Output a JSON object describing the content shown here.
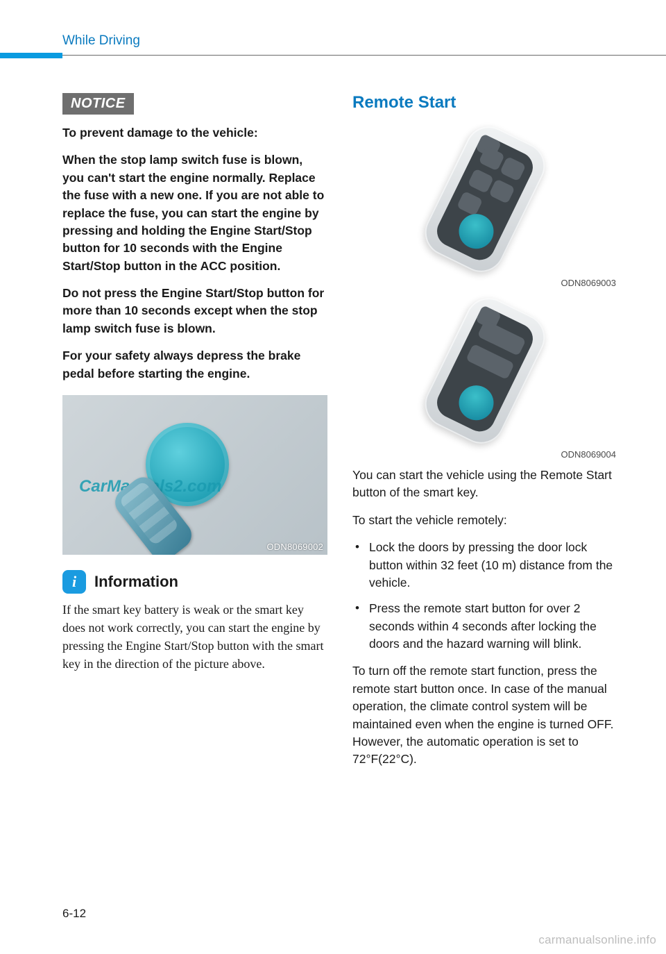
{
  "header": {
    "section": "While Driving"
  },
  "left": {
    "notice_label": "NOTICE",
    "p1": "To prevent damage to the vehicle:",
    "p2": "When the stop lamp switch fuse is blown, you can't start the engine normally. Replace the fuse with a new one. If you are not able to replace the fuse, you can start the engine by pressing and holding the Engine Start/Stop button for 10 seconds with the Engine Start/Stop button in the ACC position.",
    "p3": "Do not press the Engine Start/Stop button for more than 10 seconds except when the stop lamp switch fuse is blown.",
    "p4": "For your safety always depress the brake pedal before starting the engine.",
    "fig1_watermark": "CarManuals2.com",
    "fig1_id": "ODN8069002",
    "info_icon": "i",
    "info_title": "Information",
    "info_text": "If the smart key battery is weak or the smart key does not work correctly, you can start the engine by pressing the Engine Start/Stop button with the smart key in the direction of the picture above."
  },
  "right": {
    "title": "Remote Start",
    "fig2_id": "ODN8069003",
    "fig3_id": "ODN8069004",
    "p1": "You can start the vehicle using the Remote Start button of the smart key.",
    "p2": "To start the vehicle remotely:",
    "bullets": [
      "Lock the doors by pressing the door lock button within 32 feet (10 m) distance from the vehicle.",
      "Press the remote start button for over 2 seconds within 4 seconds after locking the doors and the hazard warning will blink."
    ],
    "p3": "To turn off the remote start function, press the remote start button once. In case of the manual operation, the climate control system will be maintained even when the engine is turned OFF. However, the automatic operation is set to 72°F(22°C)."
  },
  "footer": {
    "page_num": "6-12",
    "watermark": "carmanualsonline.info"
  },
  "colors": {
    "accent": "#0a7abf",
    "accent_light": "#0a9be0",
    "notice_bg": "#6f6f6f",
    "info_bg": "#1a9be0",
    "text": "#1a1a1a",
    "footer_wm": "#bdbdbd"
  }
}
